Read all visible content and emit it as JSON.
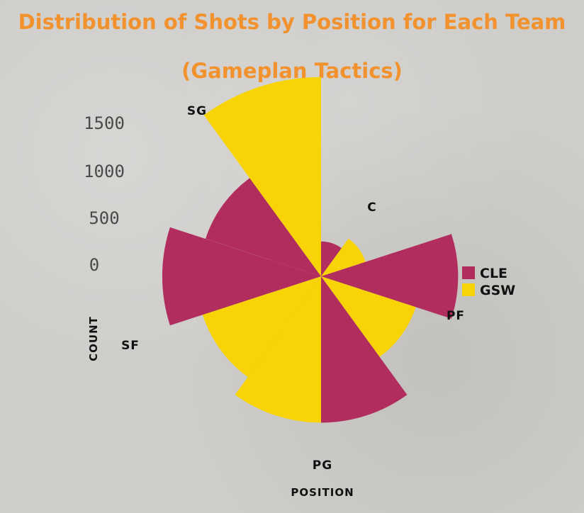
{
  "chart_data": {
    "type": "polar-bar",
    "title": "Distribution of Shots by Position for Each Team",
    "subtitle": "(Gameplan Tactics)",
    "xlabel": "POSITION",
    "ylabel": "COUNT",
    "categories": [
      "C",
      "PF",
      "PG",
      "SF",
      "SG"
    ],
    "series": [
      {
        "name": "CLE",
        "color": "#b12d5e",
        "values": [
          280,
          1100,
          1175,
          1275,
          975
        ]
      },
      {
        "name": "GSW",
        "color": "#f8d306",
        "values": [
          375,
          800,
          1175,
          1000,
          1600
        ]
      }
    ],
    "radial_ticks": [
      "0",
      "500",
      "1000",
      "1500"
    ],
    "radial_tick_values": [
      0,
      500,
      1000,
      1500
    ],
    "rlim": [
      0,
      1650
    ],
    "legend_position": "right"
  }
}
